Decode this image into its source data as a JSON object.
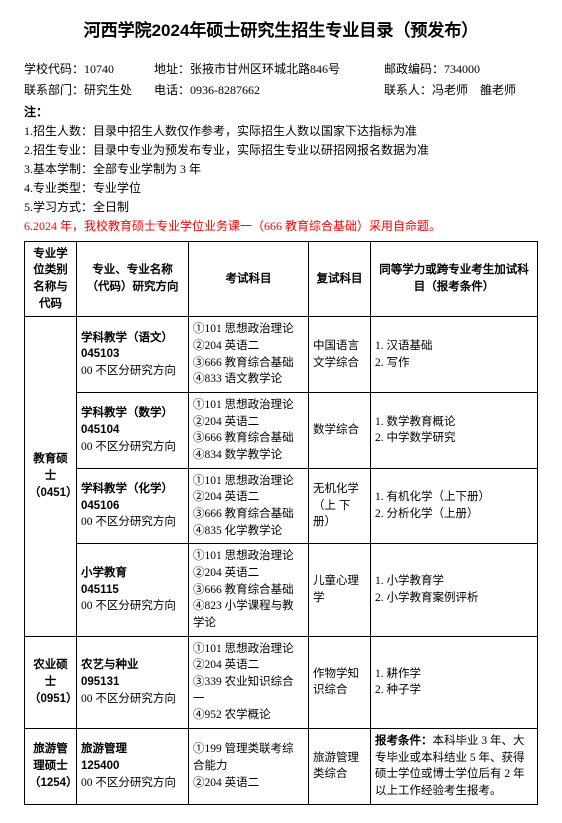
{
  "title": "河西学院2024年硕士研究生招生专业目录（预发布）",
  "info": {
    "school_code_label": "学校代码：",
    "school_code": "10740",
    "address_label": "地址：",
    "address": "张掖市甘州区环城北路846号",
    "postal_label": "邮政编码：",
    "postal": "734000",
    "dept_label": "联系部门：",
    "dept": "研究生处",
    "phone_label": "电话：",
    "phone": "0936-8287662",
    "contact_label": "联系人：",
    "contact": "冯老师　雒老师"
  },
  "notes_header": "注：",
  "notes": [
    "1.招生人数：目录中招生人数仅作参考，实际招生人数以国家下达指标为准",
    "2.招生专业：目录中专业为预发布专业，实际招生专业以研招网报名数据为准",
    "3.基本学制：全部专业学制为 3 年",
    "4.专业类型：专业学位",
    "5.学习方式：全日制"
  ],
  "note_red": "6.2024 年，我校教育硕士专业学位业务课一（666 教育综合基础）采用自命题。",
  "headers": {
    "h1": "专业学位类别名称与代码",
    "h2": "专业、专业名称（代码）研究方向",
    "h3": "考试科目",
    "h4": "复试科目",
    "h5": "同等学力或跨专业考生加试科目（报考条件）"
  },
  "categories": {
    "edu": "教育硕士（0451）",
    "agri": "农业硕士（0951）",
    "tour": "旅游管理硕士（1254）"
  },
  "rows": [
    {
      "major_bold1": "学科教学（语文）",
      "major_bold2": "045103",
      "major_rest": "00 不区分研究方向",
      "exams": "①101 思想政治理论\n②204 英语二\n③666 教育综合基础\n④833 语文教学论",
      "retest": "中国语言文学综合",
      "extra": "1. 汉语基础\n2. 写作"
    },
    {
      "major_bold1": "学科教学（数学）",
      "major_bold2": "045104",
      "major_rest": "00 不区分研究方向",
      "exams": "①101 思想政治理论\n②204 英语二\n③666 教育综合基础\n④834 数学教学论",
      "retest": "数学综合",
      "extra": "1. 数学教育概论\n2. 中学数学研究"
    },
    {
      "major_bold1": "学科教学（化学）",
      "major_bold2": "045106",
      "major_rest": "00 不区分研究方向",
      "exams": "①101 思想政治理论\n②204 英语二\n③666 教育综合基础\n④835 化学教学论",
      "retest": "无机化学（上 下册）",
      "extra": "1. 有机化学（上下册）\n2. 分析化学（上册）"
    },
    {
      "major_bold1": "小学教育",
      "major_bold2": "045115",
      "major_rest": "00 不区分研究方向",
      "exams": "①101 思想政治理论\n②204 英语二\n③666 教育综合基础\n④823 小学课程与教学论",
      "retest": "儿童心理学",
      "extra": "1. 小学教育学\n2. 小学教育案例评析"
    },
    {
      "major_bold1": "农艺与种业",
      "major_bold2": "095131",
      "major_rest": "00 不区分研究方向",
      "exams": "①101 思想政治理论\n②204 英语二\n③339 农业知识综合一\n④952 农学概论",
      "retest": "作物学知识综合",
      "extra": "1. 耕作学\n2. 种子学"
    },
    {
      "major_bold1": "旅游管理",
      "major_bold2": "125400",
      "major_rest": "00 不区分研究方向",
      "exams": "①199 管理类联考综合能力\n②204 英语二",
      "retest": "旅游管理类综合",
      "extra_bold": "报考条件：",
      "extra": "本科毕业 3 年、大专毕业或本科结业 5 年、获得硕士学位或博士学位后有 2 年以上工作经验考生报考。"
    }
  ]
}
